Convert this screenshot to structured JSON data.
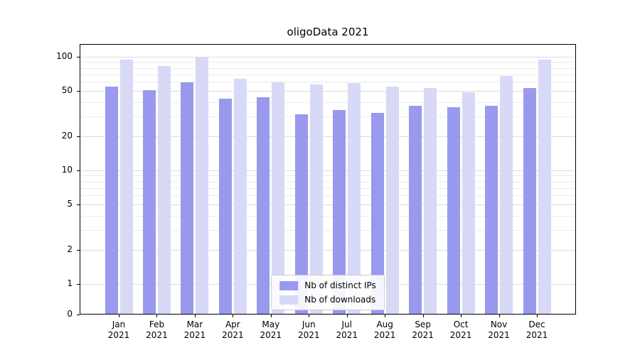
{
  "chart_data": {
    "type": "bar",
    "title": "oligoData 2021",
    "xlabel": "",
    "ylabel": "",
    "categories": [
      "Jan",
      "Feb",
      "Mar",
      "Apr",
      "May",
      "Jun",
      "Jul",
      "Aug",
      "Sep",
      "Oct",
      "Nov",
      "Dec"
    ],
    "x_year_label": "2021",
    "series": [
      {
        "name": "Nb of distinct IPs",
        "color": "#9999ee",
        "values": [
          55,
          51,
          60,
          43,
          44,
          31,
          34,
          32,
          37,
          36,
          37,
          53
        ]
      },
      {
        "name": "Nb of downloads",
        "color": "#d8d8f7",
        "values": [
          94,
          83,
          100,
          64,
          60,
          57,
          59,
          55,
          53,
          49,
          68,
          94
        ]
      }
    ],
    "y_axis": {
      "ticks": [
        0,
        1,
        2,
        5,
        10,
        20,
        50,
        100
      ],
      "minor_gridlines": [
        3,
        4,
        6,
        7,
        8,
        9,
        30,
        40,
        60,
        70,
        80,
        90
      ],
      "scale": "log above 1, linear 0-1",
      "ylim": [
        0,
        130
      ]
    },
    "grid": true,
    "legend_position": "lower center",
    "colors": {
      "grid_major": "#dcdcdc",
      "grid_minor": "#ececec",
      "axis": "#000000",
      "background": "#ffffff"
    }
  }
}
